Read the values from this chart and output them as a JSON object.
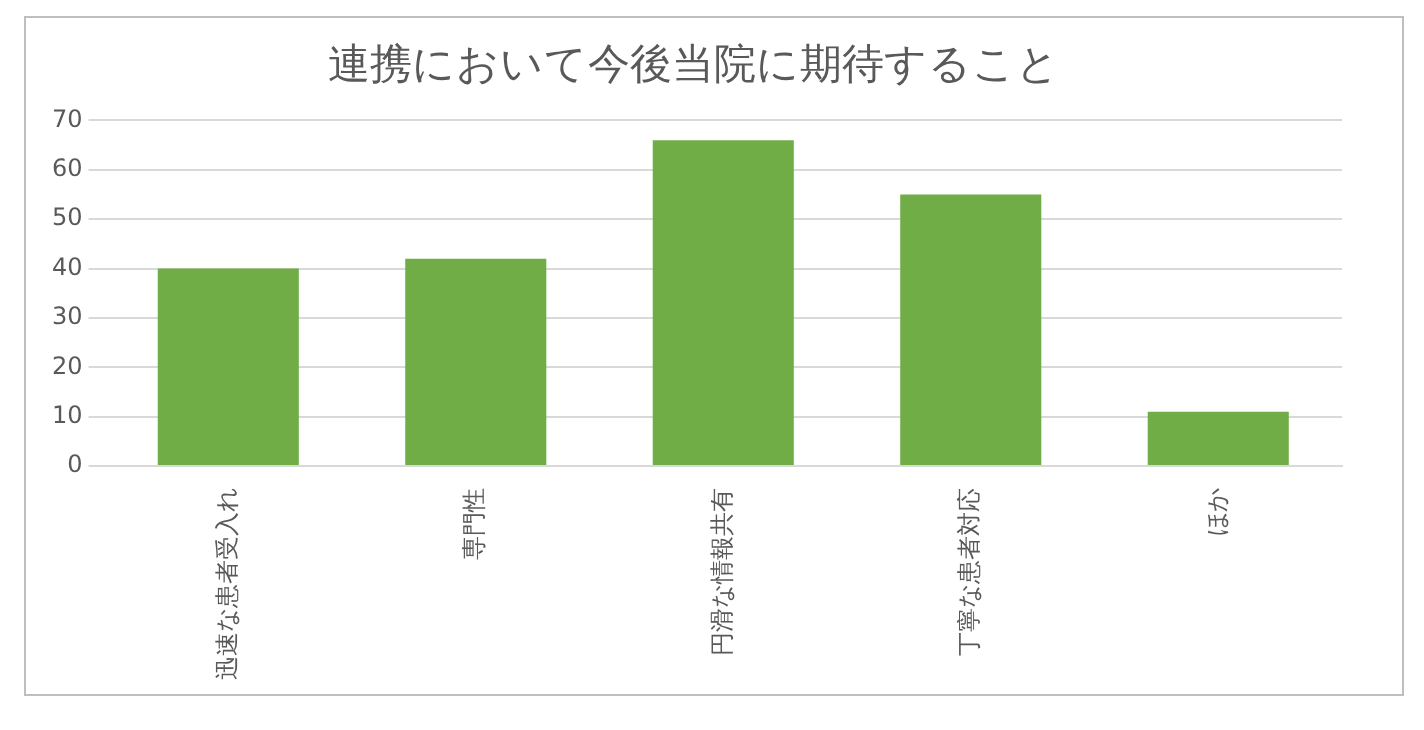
{
  "chart_data": {
    "type": "bar",
    "title": "連携において今後当院に期待すること",
    "categories": [
      "迅速な患者受入れ",
      "専門性",
      "円滑な情報共有",
      "丁寧な患者対応",
      "ほか"
    ],
    "values": [
      40,
      42,
      66,
      55,
      11
    ],
    "color": "#70ad47",
    "ylim": [
      0,
      70
    ],
    "yticks": [
      0,
      10,
      20,
      30,
      40,
      50,
      60,
      70
    ],
    "grid": "y",
    "legend": false
  }
}
